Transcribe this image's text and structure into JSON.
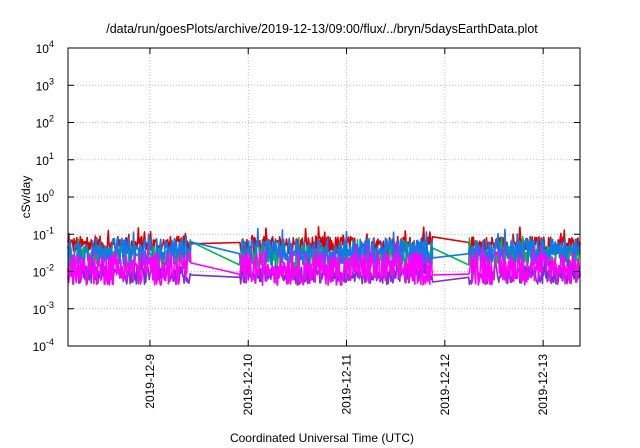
{
  "chart_data": {
    "type": "line",
    "title": "/data/run/goesPlots/archive/2019-12-13/09:00/flux/../bryn/5daysEarthData.plot",
    "xlabel": "Coordinated Universal Time (UTC)",
    "ylabel": "cSv/day",
    "yscale": "log",
    "ylim": [
      0.0001,
      10000
    ],
    "xlim": [
      "2019-12-08T04:00",
      "2019-12-13T09:00"
    ],
    "grid": true,
    "y_ticks": [
      {
        "value": 0.0001,
        "base": "10",
        "exp": "-4"
      },
      {
        "value": 0.001,
        "base": "10",
        "exp": "-3"
      },
      {
        "value": 0.01,
        "base": "10",
        "exp": "-2"
      },
      {
        "value": 0.1,
        "base": "10",
        "exp": "-1"
      },
      {
        "value": 1,
        "base": "10",
        "exp": "0"
      },
      {
        "value": 10,
        "base": "10",
        "exp": "1"
      },
      {
        "value": 100,
        "base": "10",
        "exp": "2"
      },
      {
        "value": 1000,
        "base": "10",
        "exp": "3"
      },
      {
        "value": 10000,
        "base": "10",
        "exp": "4"
      }
    ],
    "x_ticks": [
      {
        "value": "2019-12-09T00:00",
        "label": "2019-12-9"
      },
      {
        "value": "2019-12-10T00:00",
        "label": "2019-12-10"
      },
      {
        "value": "2019-12-11T00:00",
        "label": "2019-12-11"
      },
      {
        "value": "2019-12-12T00:00",
        "label": "2019-12-12"
      },
      {
        "value": "2019-12-13T00:00",
        "label": "2019-12-13"
      }
    ],
    "gaps": [
      {
        "from": "2019-12-09T10:00",
        "to": "2019-12-09T22:00"
      },
      {
        "from": "2019-12-11T21:00",
        "to": "2019-12-12T06:00"
      }
    ],
    "series": [
      {
        "color": "#dd0000",
        "base": 0.05,
        "amp": 0.25,
        "gap_level": 0.06
      },
      {
        "color": "#00bb44",
        "base": 0.025,
        "amp": 0.3,
        "gap_level": 0.015
      },
      {
        "color": "#7733cc",
        "base": 0.008,
        "amp": 0.25,
        "gap_level": 0.007
      },
      {
        "color": "#1177ee",
        "base": 0.035,
        "amp": 0.35,
        "gap_level": 0.03
      },
      {
        "color": "#ff00ff",
        "base": 0.012,
        "amp": 0.45,
        "gap_level": 0.0085
      }
    ]
  }
}
